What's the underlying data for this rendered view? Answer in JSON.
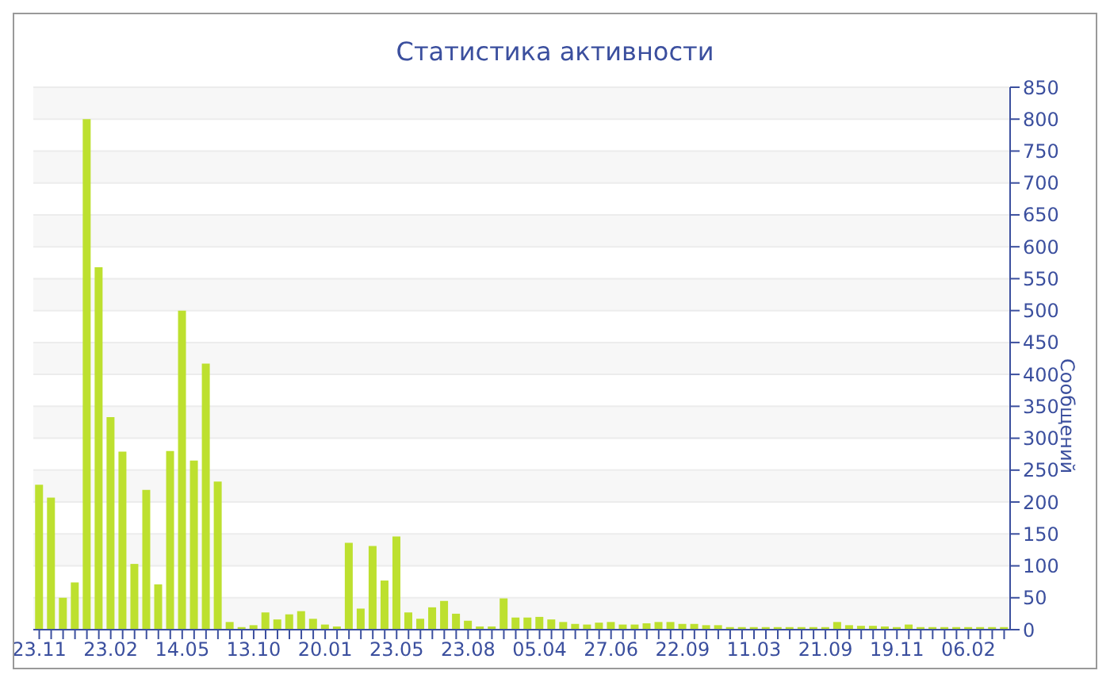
{
  "chart_data": {
    "type": "bar",
    "title": "Статистика активности",
    "ylabel": "Сообщений",
    "color": "#bde02f",
    "categories": [
      "23.11",
      null,
      null,
      null,
      null,
      null,
      "23.02",
      null,
      null,
      null,
      null,
      null,
      "14.05",
      null,
      null,
      null,
      null,
      null,
      "13.10",
      null,
      null,
      null,
      null,
      null,
      "20.01",
      null,
      null,
      null,
      null,
      null,
      "23.05",
      null,
      null,
      null,
      null,
      null,
      "23.08",
      null,
      null,
      null,
      null,
      null,
      "05.04",
      null,
      null,
      null,
      null,
      null,
      "27.06",
      null,
      null,
      null,
      null,
      null,
      "22.09",
      null,
      null,
      null,
      null,
      null,
      "11.03",
      null,
      null,
      null,
      null,
      null,
      "21.09",
      null,
      null,
      null,
      null,
      null,
      "19.11",
      null,
      null,
      null,
      null,
      null,
      "06.02",
      null,
      null,
      null
    ],
    "values": [
      227,
      207,
      50,
      74,
      800,
      568,
      333,
      279,
      103,
      219,
      71,
      280,
      500,
      265,
      417,
      232,
      12,
      4,
      7,
      27,
      16,
      24,
      29,
      17,
      8,
      5,
      136,
      33,
      131,
      77,
      146,
      27,
      17,
      35,
      45,
      25,
      14,
      5,
      5,
      49,
      19,
      19,
      20,
      16,
      12,
      9,
      8,
      11,
      12,
      8,
      8,
      10,
      12,
      12,
      9,
      9,
      7,
      7,
      4,
      4,
      4,
      4,
      4,
      4,
      4,
      4,
      4,
      12,
      7,
      6,
      6,
      5,
      4,
      8,
      4,
      4,
      4,
      4,
      4,
      4,
      4,
      4
    ],
    "ylim": [
      0,
      850
    ],
    "yticks": [
      0,
      50,
      100,
      150,
      200,
      250,
      300,
      350,
      400,
      450,
      500,
      550,
      600,
      650,
      700,
      750,
      800,
      850
    ],
    "grid": "y"
  }
}
